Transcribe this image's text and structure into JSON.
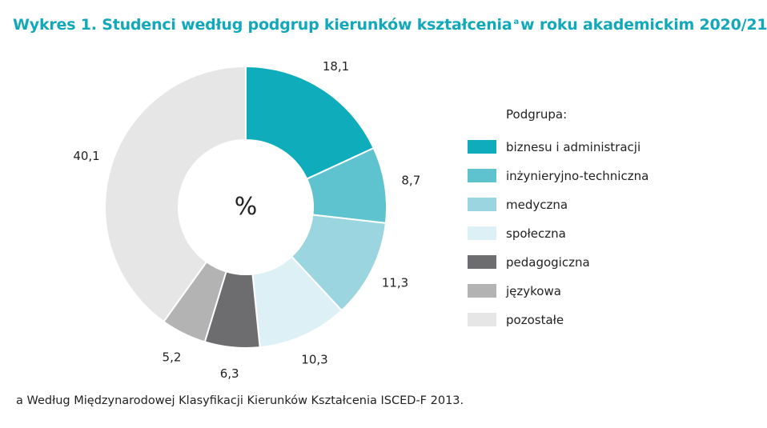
{
  "title": {
    "main": "Wykres 1. Studenci według podgrup kierunków kształcenia",
    "marker": "a",
    "rest": "w roku akademickim 2020/21"
  },
  "center_label": "%",
  "footnote": "a Według Międzynarodowej Klasyfikacji Kierunków Kształcenia ISCED-F 2013.",
  "chart_data": {
    "type": "pie",
    "style": "donut",
    "title": "Wykres 1. Studenci według podgrup kierunków kształcenia a w roku akademickim 2020/21",
    "unit": "%",
    "legend_title": "Podgrupa:",
    "legend_placement": "right",
    "categories": [
      "biznesu i administracji",
      "inżynieryjno-techniczna",
      "medyczna",
      "społeczna",
      "pedagogiczna",
      "językowa",
      "pozostałe"
    ],
    "values": [
      18.1,
      8.7,
      11.3,
      10.3,
      6.3,
      5.2,
      40.1
    ],
    "value_labels": [
      "18,1",
      "8,7",
      "11,3",
      "10,3",
      "6,3",
      "5,2",
      "40,1"
    ],
    "colors": [
      "#0fadbc",
      "#5ec2cf",
      "#9bd5df",
      "#dcf0f6",
      "#6d6c6e",
      "#b3b3b3",
      "#e6e6e6"
    ]
  }
}
